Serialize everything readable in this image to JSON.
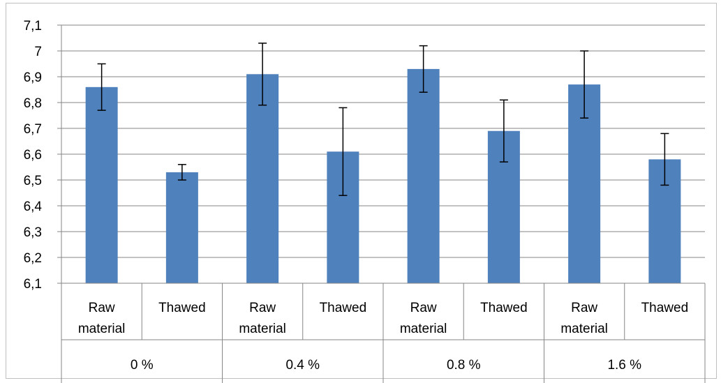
{
  "chart_data": {
    "type": "bar",
    "title": "",
    "xlabel": "",
    "ylabel": "",
    "ylim": [
      6.1,
      7.1
    ],
    "y_ticks": [
      "6,1",
      "6,2",
      "6,3",
      "6,4",
      "6,5",
      "6,6",
      "6,7",
      "6,8",
      "6,9",
      "7",
      "7,1"
    ],
    "grid": true,
    "legend": "none",
    "colors": {
      "bar": "#4f81bd",
      "grid": "#868686",
      "axis": "#868686",
      "error_bar": "#000000"
    },
    "groups": [
      "0 %",
      "0.4 %",
      "0.8 %",
      "1.6 %"
    ],
    "categories": [
      [
        "Raw",
        "material"
      ],
      [
        "Thawed"
      ],
      [
        "Raw",
        "material"
      ],
      [
        "Thawed"
      ],
      [
        "Raw",
        "material"
      ],
      [
        "Thawed"
      ],
      [
        "Raw",
        "material"
      ],
      [
        "Thawed"
      ]
    ],
    "values": [
      6.86,
      6.53,
      6.91,
      6.61,
      6.93,
      6.69,
      6.87,
      6.58
    ],
    "error_low": [
      6.77,
      6.5,
      6.79,
      6.44,
      6.84,
      6.57,
      6.74,
      6.48
    ],
    "error_high": [
      6.95,
      6.56,
      7.03,
      6.78,
      7.02,
      6.81,
      7.0,
      6.68
    ]
  }
}
